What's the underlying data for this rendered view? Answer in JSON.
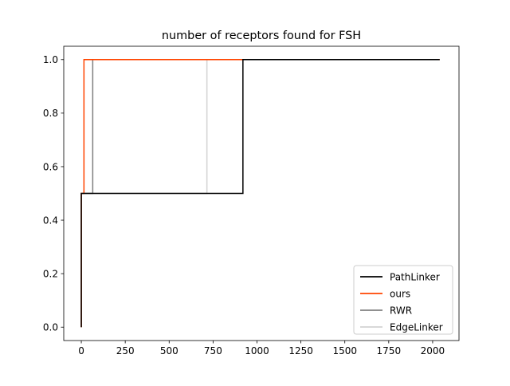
{
  "chart_data": {
    "type": "line",
    "title": "number of receptors found for FSH",
    "xlabel": "",
    "ylabel": "",
    "xlim": [
      -100,
      2150
    ],
    "ylim": [
      -0.05,
      1.05
    ],
    "xticks": [
      0,
      250,
      500,
      750,
      1000,
      1250,
      1500,
      1750,
      2000
    ],
    "yticks": [
      0.0,
      0.2,
      0.4,
      0.6,
      0.8,
      1.0
    ],
    "grid": false,
    "legend": "lower right",
    "series": [
      {
        "name": "PathLinker",
        "color": "#000000",
        "step": true,
        "points": [
          [
            0,
            0.0
          ],
          [
            0,
            0.5
          ],
          [
            920,
            0.5
          ],
          [
            920,
            1.0
          ],
          [
            2040,
            1.0
          ]
        ]
      },
      {
        "name": "ours",
        "color": "#ff4500",
        "step": true,
        "points": [
          [
            0,
            0.0
          ],
          [
            0,
            0.5
          ],
          [
            15,
            0.5
          ],
          [
            15,
            1.0
          ],
          [
            2040,
            1.0
          ]
        ]
      },
      {
        "name": "RWR",
        "color": "#808080",
        "step": true,
        "points": [
          [
            0,
            0.0
          ],
          [
            0,
            0.5
          ],
          [
            65,
            0.5
          ],
          [
            65,
            1.0
          ],
          [
            2040,
            1.0
          ]
        ]
      },
      {
        "name": "EdgeLinker",
        "color": "#d3d3d3",
        "step": true,
        "points": [
          [
            0,
            0.0
          ],
          [
            0,
            0.5
          ],
          [
            715,
            0.5
          ],
          [
            715,
            1.0
          ],
          [
            2040,
            1.0
          ]
        ]
      }
    ]
  }
}
